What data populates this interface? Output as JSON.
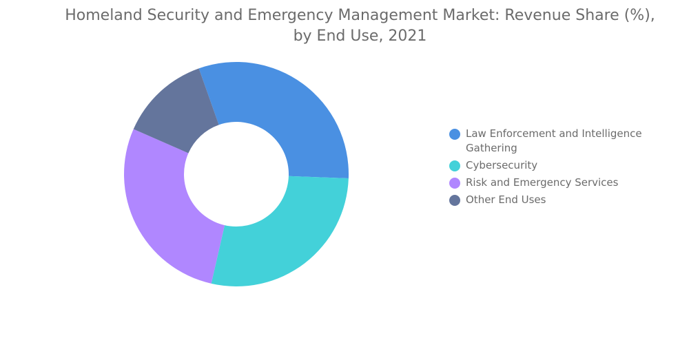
{
  "chart_data": {
    "type": "pie",
    "style": "donut",
    "title_lines": [
      "Homeland Security and Emergency Management Market: Revenue Share (%),",
      "by End Use, 2021"
    ],
    "categories": [
      "Law Enforcement and Intelligence Gathering",
      "Cybersecurity",
      "Risk and Emergency Services",
      "Other End Uses"
    ],
    "values": [
      31,
      28,
      28,
      13
    ],
    "colors": [
      "#4a90e2",
      "#43d1d9",
      "#b087ff",
      "#64759c"
    ],
    "legend_position": "right"
  }
}
